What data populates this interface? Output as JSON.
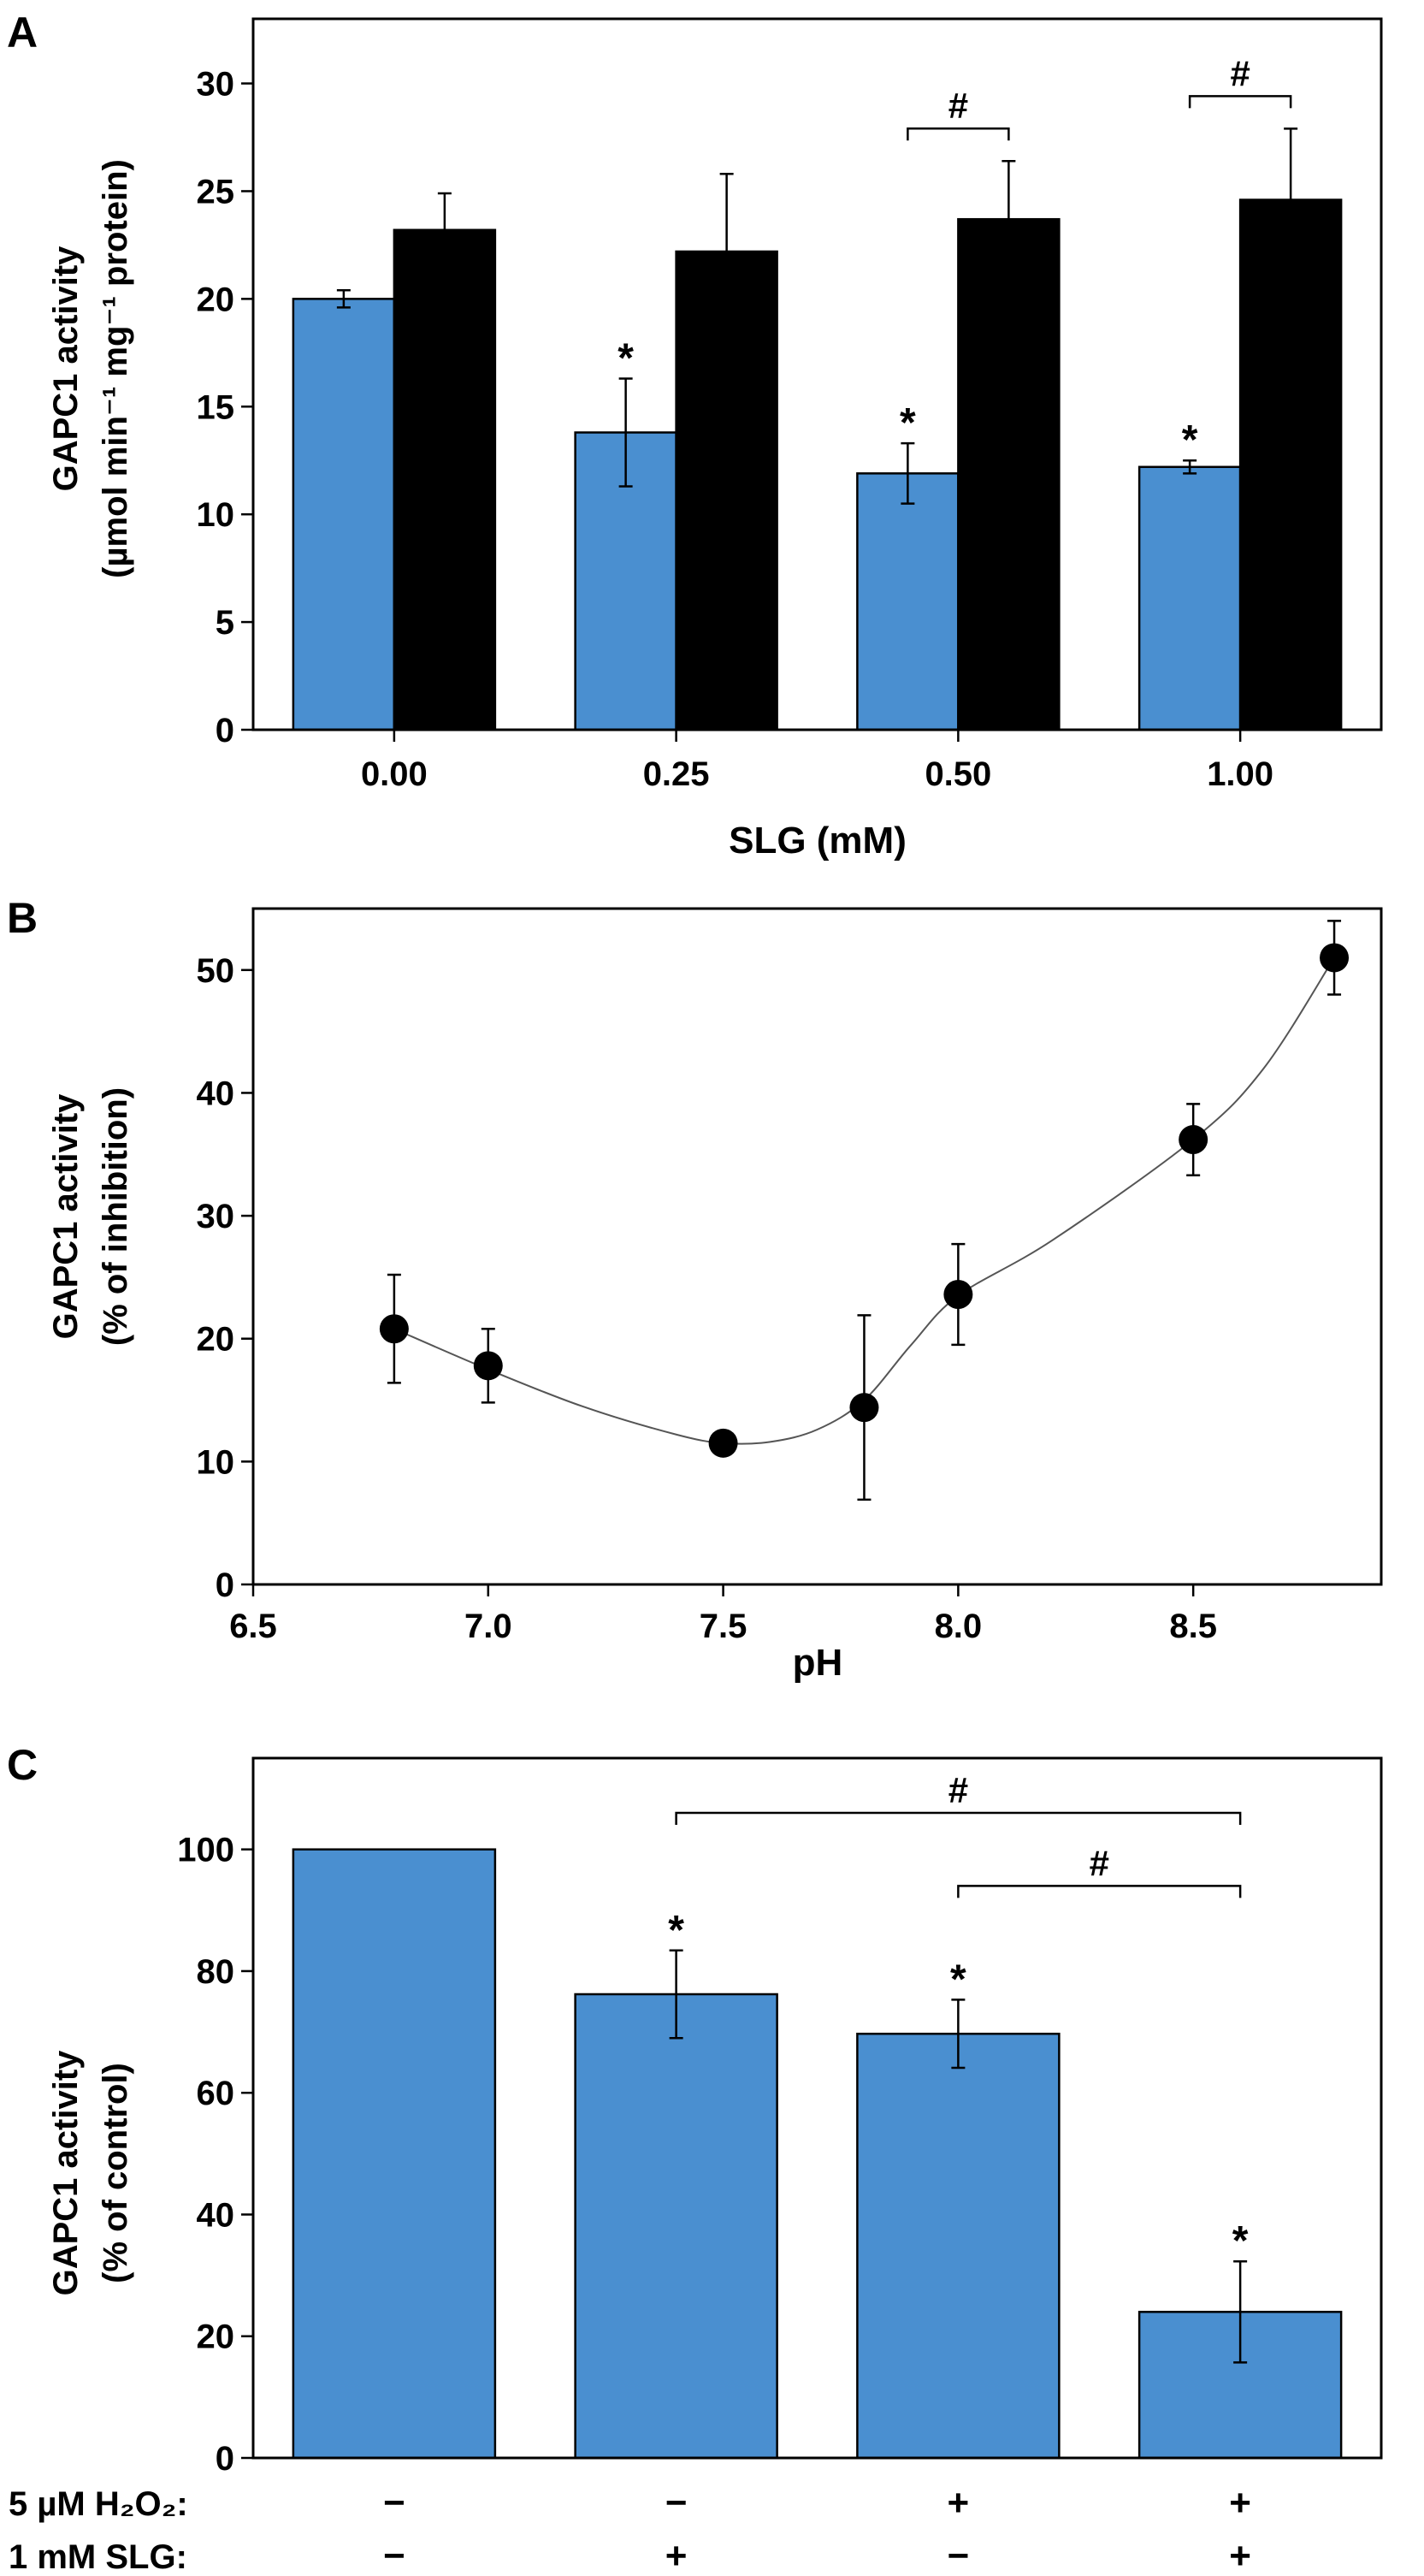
{
  "chart_data": [
    {
      "panel": "A",
      "type": "bar",
      "title": "",
      "xlabel": "SLG (mM)",
      "ylabel_line1": "GAPC1 activity",
      "ylabel_line2": "(µmol min⁻¹ mg⁻¹ protein)",
      "ylim": [
        0,
        33
      ],
      "yticks": [
        0,
        5,
        10,
        15,
        20,
        25,
        30
      ],
      "categories": [
        "0.00",
        "0.25",
        "0.50",
        "1.00"
      ],
      "series": [
        {
          "name": "blue",
          "color": "#4A8FD0",
          "values": [
            20.0,
            13.8,
            11.9,
            12.2
          ],
          "errors": [
            0.4,
            2.5,
            1.4,
            0.3
          ]
        },
        {
          "name": "black",
          "color": "#000000",
          "values": [
            23.2,
            22.2,
            23.7,
            24.6
          ],
          "errors": [
            1.7,
            3.6,
            2.7,
            3.3
          ]
        }
      ],
      "asterisks": [
        {
          "category": 1,
          "series": 0,
          "text": "*"
        },
        {
          "category": 2,
          "series": 0,
          "text": "*"
        },
        {
          "category": 3,
          "series": 0,
          "text": "*"
        }
      ],
      "brackets": [
        {
          "category": 2,
          "text": "#"
        },
        {
          "category": 3,
          "text": "#"
        }
      ]
    },
    {
      "panel": "B",
      "type": "scatter",
      "title": "",
      "xlabel": "pH",
      "ylabel_line1": "GAPC1 activity",
      "ylabel_line2": "(% of inhibition)",
      "xlim": [
        6.5,
        8.9
      ],
      "ylim": [
        0,
        55
      ],
      "xticks": [
        "6.5",
        "7.0",
        "7.5",
        "8.0",
        "8.5"
      ],
      "yticks": [
        0,
        10,
        20,
        30,
        40,
        50
      ],
      "x": [
        6.8,
        7.0,
        7.5,
        7.8,
        8.0,
        8.5,
        8.8
      ],
      "y": [
        20.8,
        17.8,
        11.5,
        14.4,
        23.6,
        36.2,
        51.0
      ],
      "errors": [
        4.4,
        3.0,
        0.3,
        7.5,
        4.1,
        2.9,
        3.0
      ],
      "trend": [
        [
          6.8,
          20.8
        ],
        [
          7.0,
          17.5
        ],
        [
          7.2,
          14.5
        ],
        [
          7.4,
          12.2
        ],
        [
          7.5,
          11.5
        ],
        [
          7.6,
          11.6
        ],
        [
          7.7,
          12.6
        ],
        [
          7.8,
          15.0
        ],
        [
          7.9,
          19.5
        ],
        [
          8.0,
          23.5
        ],
        [
          8.2,
          28.0
        ],
        [
          8.5,
          36.2
        ],
        [
          8.65,
          42.0
        ],
        [
          8.8,
          51.0
        ]
      ]
    },
    {
      "panel": "C",
      "type": "bar",
      "title": "",
      "xlabel": "",
      "ylabel_line1": "GAPC1 activity",
      "ylabel_line2": "(% of control)",
      "ylim": [
        0,
        115
      ],
      "yticks": [
        0,
        20,
        40,
        60,
        80,
        100
      ],
      "color": "#4A8FD0",
      "values": [
        100,
        76.2,
        69.7,
        24.0
      ],
      "errors": [
        0,
        7.2,
        5.6,
        8.3
      ],
      "asterisks": [
        {
          "index": 1,
          "text": "*"
        },
        {
          "index": 2,
          "text": "*"
        },
        {
          "index": 3,
          "text": "*"
        }
      ],
      "brackets": [
        {
          "from": 1,
          "to": 3,
          "level": 106,
          "text": "#"
        },
        {
          "from": 2,
          "to": 3,
          "level": 94,
          "text": "#"
        }
      ],
      "conditions": [
        {
          "label": "5 µM H₂O₂:",
          "signs": [
            "−",
            "−",
            "+",
            "+"
          ]
        },
        {
          "label": "1 mM SLG:",
          "signs": [
            "−",
            "+",
            "−",
            "+"
          ]
        }
      ]
    }
  ]
}
